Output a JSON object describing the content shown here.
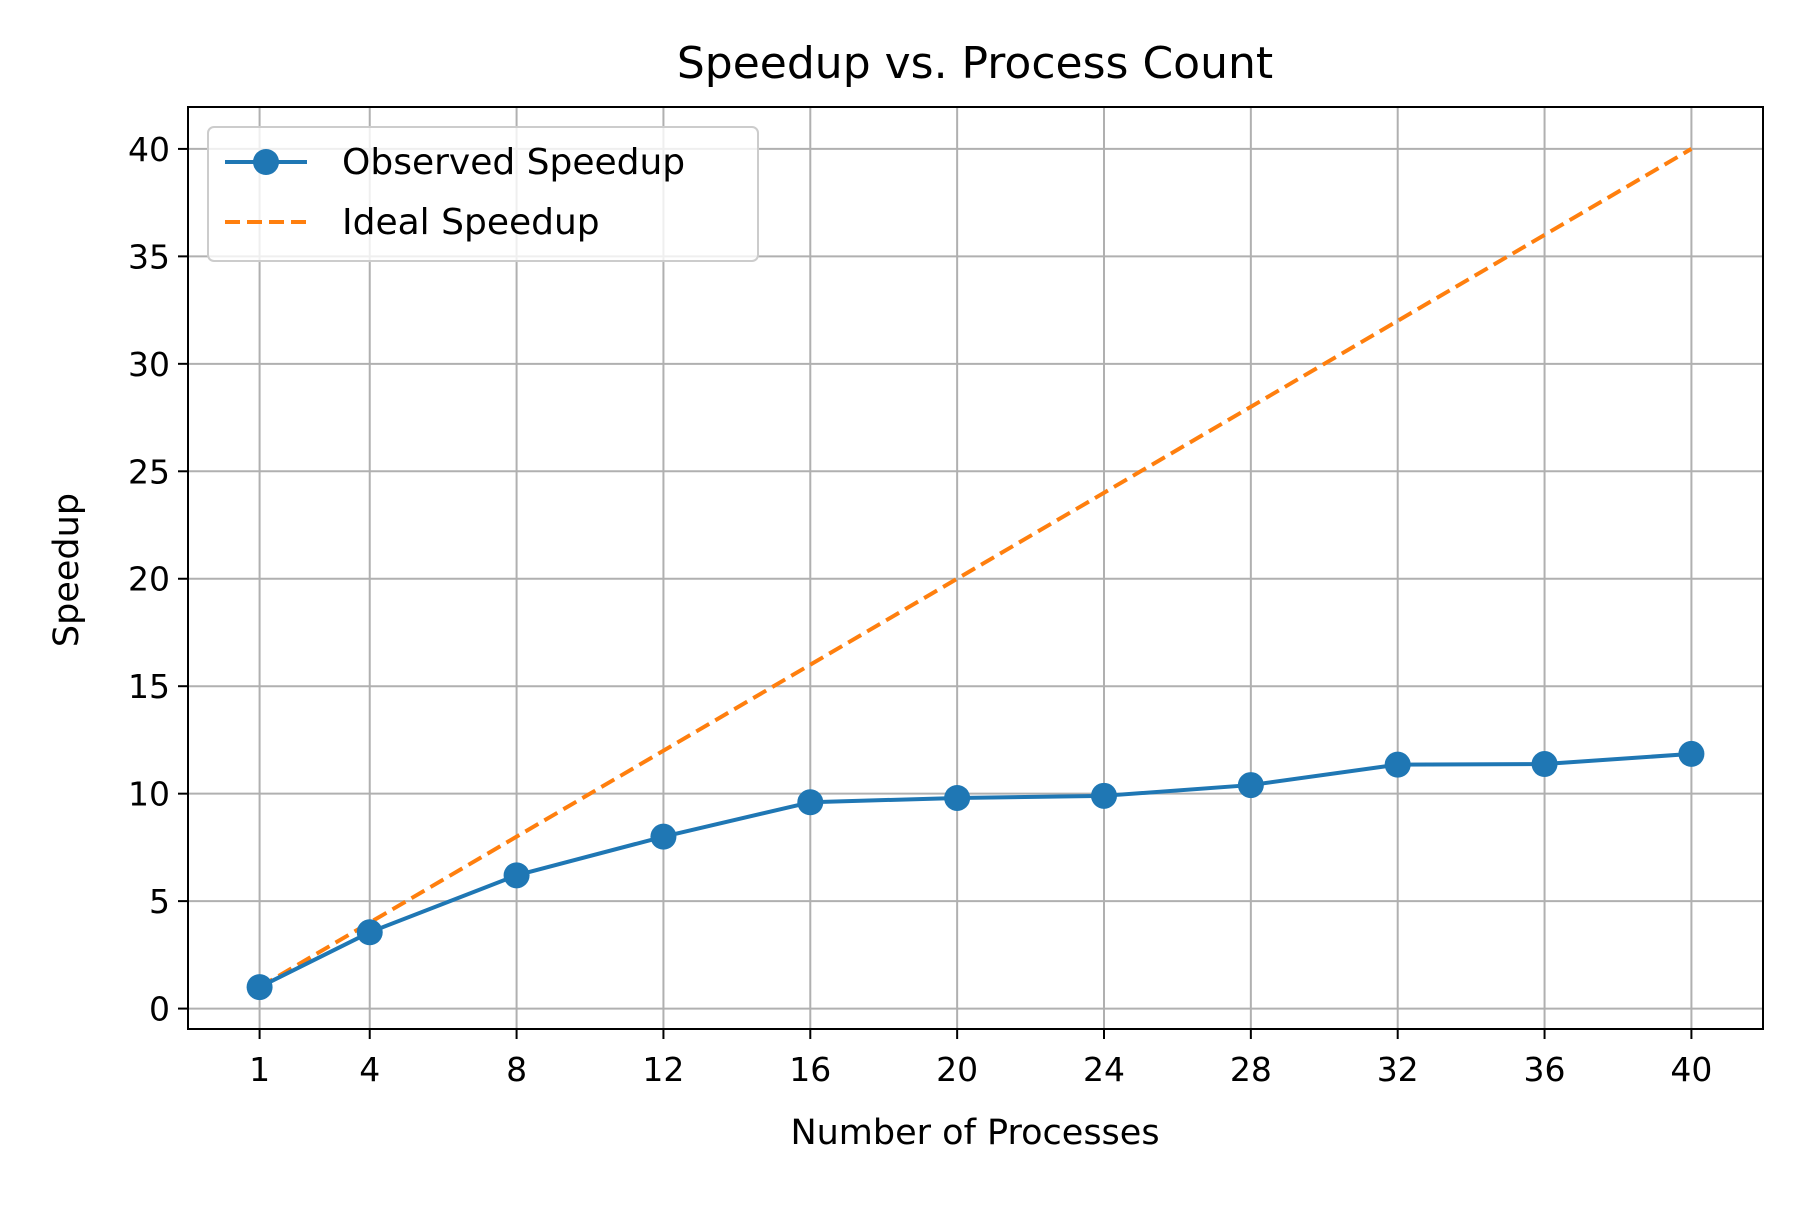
{
  "chart_data": {
    "type": "line",
    "title": "Speedup vs. Process Count",
    "xlabel": "Number of Processes",
    "ylabel": "Speedup",
    "xlim": [
      -0.95,
      41.95
    ],
    "ylim": [
      -0.95,
      41.95
    ],
    "x_ticks": [
      1,
      4,
      8,
      12,
      16,
      20,
      24,
      28,
      32,
      36,
      40
    ],
    "y_ticks": [
      0,
      5,
      10,
      15,
      20,
      25,
      30,
      35,
      40
    ],
    "grid": true,
    "legend_position": "upper-left",
    "series": [
      {
        "name": "Observed Speedup",
        "color": "#1f77b4",
        "style": "solid-with-circle-markers",
        "x": [
          1,
          4,
          8,
          12,
          16,
          20,
          24,
          28,
          32,
          36,
          40
        ],
        "y": [
          1.0,
          3.55,
          6.2,
          8.0,
          9.6,
          9.8,
          9.9,
          10.4,
          11.35,
          11.38,
          11.85
        ]
      },
      {
        "name": "Ideal Speedup",
        "color": "#ff7f0e",
        "style": "dashed",
        "x": [
          1,
          40
        ],
        "y": [
          1,
          40
        ]
      }
    ]
  }
}
